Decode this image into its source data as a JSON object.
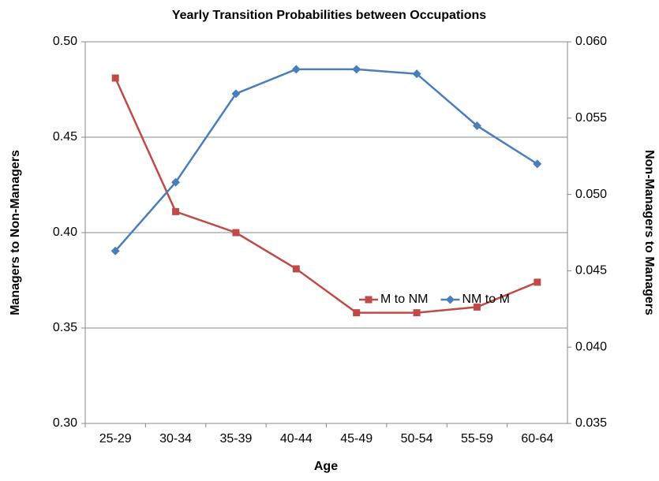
{
  "chart_data": {
    "type": "line",
    "title": "Yearly Transition Probabilities between Occupations",
    "xlabel": "Age",
    "ylabel": "Managers to Non-Managers",
    "y2label": "Non-Managers to Managers",
    "categories": [
      "25-29",
      "30-34",
      "35-39",
      "40-44",
      "45-49",
      "50-54",
      "55-59",
      "60-64"
    ],
    "series": [
      {
        "name": "M to NM",
        "color": "#be4b48",
        "marker": "square",
        "axis": "y",
        "values": [
          0.481,
          0.411,
          0.4,
          0.381,
          0.358,
          0.358,
          0.361,
          0.374
        ]
      },
      {
        "name": "NM to M",
        "color": "#4a7ebb",
        "marker": "diamond",
        "axis": "y2",
        "values": [
          0.0463,
          0.0508,
          0.0566,
          0.0582,
          0.0582,
          0.0579,
          0.0545,
          0.052
        ]
      }
    ],
    "ylim": [
      0.3,
      0.5
    ],
    "yticks": [
      {
        "value": 0.3,
        "label": "0.30"
      },
      {
        "value": 0.35,
        "label": "0.35"
      },
      {
        "value": 0.4,
        "label": "0.40"
      },
      {
        "value": 0.45,
        "label": "0.45"
      },
      {
        "value": 0.5,
        "label": "0.50"
      }
    ],
    "y2lim": [
      0.035,
      0.06
    ],
    "y2ticks": [
      {
        "value": 0.035,
        "label": "0.035"
      },
      {
        "value": 0.04,
        "label": "0.040"
      },
      {
        "value": 0.045,
        "label": "0.045"
      },
      {
        "value": 0.05,
        "label": "0.050"
      },
      {
        "value": 0.055,
        "label": "0.055"
      },
      {
        "value": 0.06,
        "label": "0.060"
      }
    ],
    "grid": true,
    "legend": "lower right"
  }
}
